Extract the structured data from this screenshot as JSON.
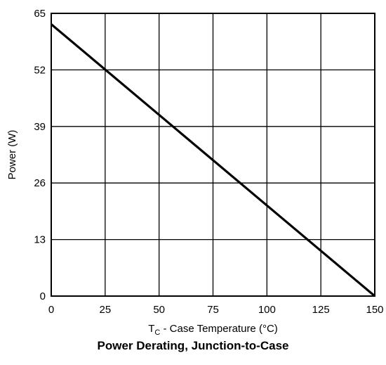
{
  "chart_data": {
    "type": "line",
    "title": "Power Derating, Junction-to-Case",
    "xlabel": {
      "main": "T",
      "sub": "C",
      "rest": " - Case Temperature (°C)"
    },
    "ylabel": "Power (W)",
    "xlim": [
      0,
      150
    ],
    "ylim": [
      0,
      65
    ],
    "x_ticks": [
      0,
      25,
      50,
      75,
      100,
      125,
      150
    ],
    "y_ticks": [
      0,
      13,
      26,
      39,
      52,
      65
    ],
    "grid": true,
    "series": [
      {
        "x": [
          0,
          150
        ],
        "values": [
          62.5,
          0
        ]
      }
    ],
    "colors": {
      "line": "#000000",
      "grid": "#000000",
      "frame": "#000000"
    }
  }
}
